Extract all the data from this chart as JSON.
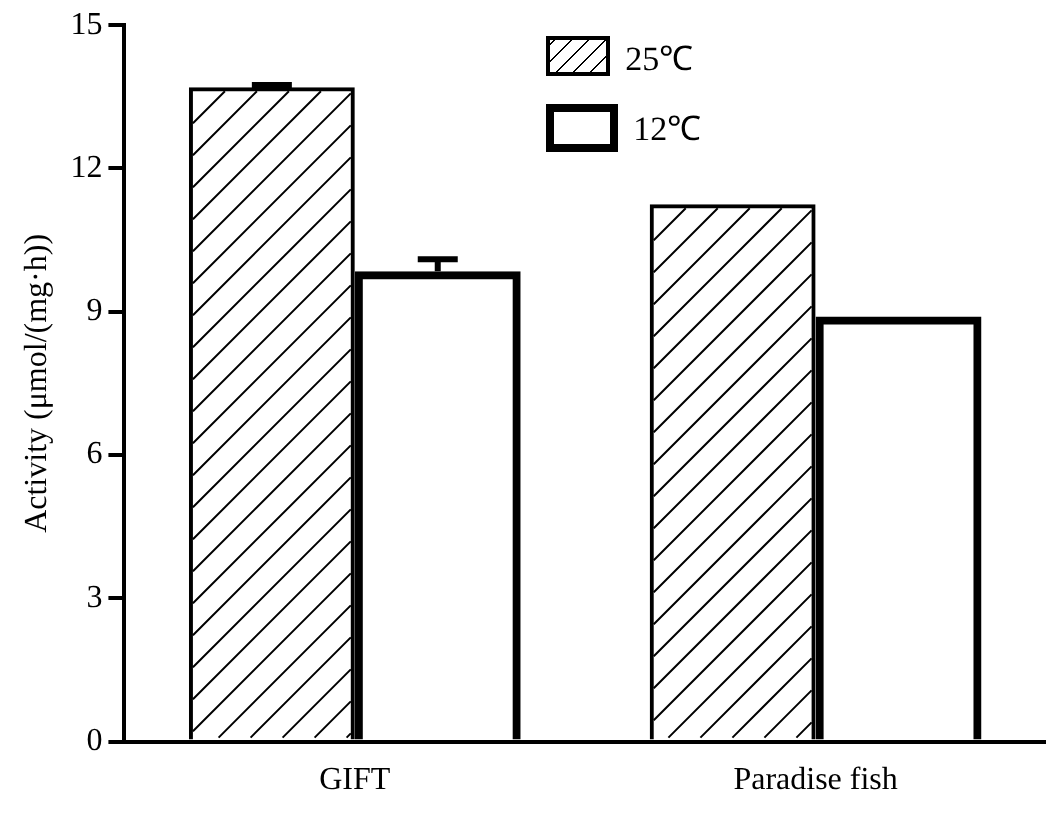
{
  "chart_data": {
    "type": "bar",
    "ylabel": "Activity (μmol/(mg·h))",
    "categories": [
      "GIFT",
      "Paradise fish"
    ],
    "series": [
      {
        "name": "25℃",
        "color": "#000000",
        "values": [
          13.7,
          11.25
        ],
        "errors": [
          0.05,
          null
        ]
      },
      {
        "name": "12℃",
        "color": "#000000",
        "values": [
          9.85,
          8.9
        ],
        "errors": [
          0.25,
          null
        ]
      }
    ],
    "ylim": [
      0,
      15
    ],
    "yticks": [
      0,
      3,
      6,
      9,
      12,
      15
    ],
    "grid": false,
    "legend": "top"
  }
}
